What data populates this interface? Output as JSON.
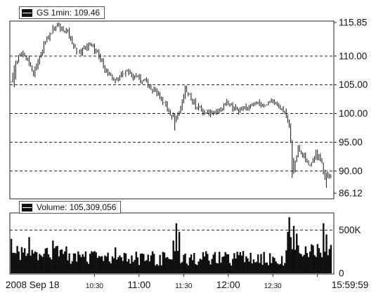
{
  "price_legend": {
    "symbol": "GS",
    "interval": "1min",
    "separator": ":",
    "value": "109.46"
  },
  "volume_legend": {
    "title": "Volume",
    "value": "105,309,056"
  },
  "colors": {
    "bars": "#111111",
    "grid": "#222222",
    "background": "#ffffff"
  },
  "chart_data": [
    {
      "type": "ohlc",
      "title": "GS 1min: 109.46",
      "ylim": [
        86.12,
        115.85
      ],
      "yticks": [
        "115.85",
        "110.00",
        "105.00",
        "100.00",
        "95.00",
        "90.00",
        "86.12"
      ],
      "y_tick_values": [
        115.85,
        110,
        105,
        100,
        95,
        90,
        86.12
      ],
      "grid_lines_at": [
        110,
        105,
        100,
        95,
        90
      ],
      "grid": "dashed horizontal",
      "legend_position": "top-left",
      "keyframes": [
        {
          "t": 0,
          "p": 105.5
        },
        {
          "t": 2,
          "p": 108.5
        },
        {
          "t": 6,
          "p": 110.5
        },
        {
          "t": 11,
          "p": 109.5
        },
        {
          "t": 15,
          "p": 107.0
        },
        {
          "t": 20,
          "p": 110.5
        },
        {
          "t": 26,
          "p": 114.0
        },
        {
          "t": 31,
          "p": 115.4
        },
        {
          "t": 37,
          "p": 114.5
        },
        {
          "t": 45,
          "p": 110.5
        },
        {
          "t": 52,
          "p": 111.8
        },
        {
          "t": 58,
          "p": 110.8
        },
        {
          "t": 63,
          "p": 107.5
        },
        {
          "t": 70,
          "p": 106.0
        },
        {
          "t": 78,
          "p": 107.2
        },
        {
          "t": 88,
          "p": 105.8
        },
        {
          "t": 98,
          "p": 103.5
        },
        {
          "t": 106,
          "p": 100.5
        },
        {
          "t": 110,
          "p": 99.0
        },
        {
          "t": 114,
          "p": 101.0
        },
        {
          "t": 117,
          "p": 104.0
        },
        {
          "t": 120,
          "p": 103.0
        },
        {
          "t": 124,
          "p": 101.5
        },
        {
          "t": 131,
          "p": 100.0
        },
        {
          "t": 140,
          "p": 100.5
        },
        {
          "t": 145,
          "p": 101.8
        },
        {
          "t": 152,
          "p": 100.5
        },
        {
          "t": 160,
          "p": 101.0
        },
        {
          "t": 166,
          "p": 102.0
        },
        {
          "t": 170,
          "p": 101.5
        },
        {
          "t": 175,
          "p": 102.2
        },
        {
          "t": 181,
          "p": 101.0
        },
        {
          "t": 184,
          "p": 100.5
        },
        {
          "t": 187,
          "p": 98.0
        },
        {
          "t": 189,
          "p": 92.0
        },
        {
          "t": 190,
          "p": 90.0
        },
        {
          "t": 193,
          "p": 94.0
        },
        {
          "t": 197,
          "p": 92.5
        },
        {
          "t": 201,
          "p": 91.0
        },
        {
          "t": 205,
          "p": 93.0
        },
        {
          "t": 209,
          "p": 91.5
        },
        {
          "t": 211,
          "p": 88.5
        },
        {
          "t": 213,
          "p": 89.5
        },
        {
          "t": 215,
          "p": 89.0
        }
      ]
    },
    {
      "type": "bar",
      "title": "Volume: 105,309,056",
      "ylim": [
        0,
        700000
      ],
      "yticks": [
        "500K",
        "0"
      ],
      "y_tick_values": [
        500000,
        0
      ],
      "grid_lines_at": [
        500000
      ],
      "x_ticks": [
        {
          "label": "2008 Sep 18",
          "t": 0
        },
        {
          "label": "10:30",
          "t": 56
        },
        {
          "label": "11:00",
          "t": 86
        },
        {
          "label": "11:30",
          "t": 116
        },
        {
          "label": "12:00",
          "t": 146
        },
        {
          "label": "12:30",
          "t": 176
        },
        {
          "label": "15:59:59",
          "t": 206
        }
      ],
      "spikes": [
        {
          "t": 0,
          "v": 400000
        },
        {
          "t": 12,
          "v": 420000
        },
        {
          "t": 28,
          "v": 380000
        },
        {
          "t": 109,
          "v": 380000
        },
        {
          "t": 111,
          "v": 580000
        },
        {
          "t": 113,
          "v": 480000
        },
        {
          "t": 70,
          "v": 300000
        },
        {
          "t": 186,
          "v": 480000
        },
        {
          "t": 187,
          "v": 650000
        },
        {
          "t": 188,
          "v": 420000
        },
        {
          "t": 190,
          "v": 550000
        },
        {
          "t": 192,
          "v": 460000
        },
        {
          "t": 210,
          "v": 580000
        },
        {
          "t": 212,
          "v": 450000
        }
      ]
    }
  ]
}
